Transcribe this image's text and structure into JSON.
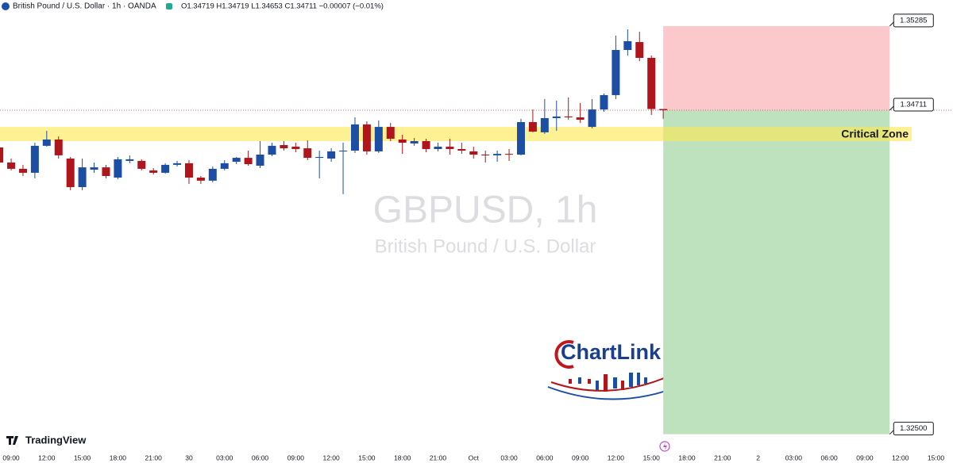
{
  "chart_data": {
    "type": "candlestick",
    "title": "British Pound / U.S. Dollar · 1h · OANDA",
    "legend_ohlc": "O1.34719 H1.34719 L1.34653 C1.34711 −0.00007 (−0.01%)",
    "watermark": [
      "GBPUSD, 1h",
      "British Pound / U.S. Dollar"
    ],
    "logo": "ChartLink",
    "brand": "TradingView",
    "up_color": "#1c4fa3",
    "down_color": "#b0151b",
    "x": [
      -1,
      0,
      1,
      2,
      3,
      4,
      5,
      6,
      7,
      8,
      9,
      10,
      11,
      12,
      13,
      14,
      15,
      16,
      17,
      18,
      19,
      20,
      21,
      22,
      23,
      24,
      25,
      26,
      27,
      28,
      29,
      30,
      31,
      32,
      33,
      34,
      35,
      36,
      37,
      38,
      39,
      40,
      41,
      42,
      43,
      44,
      45,
      46,
      47,
      48,
      49,
      50,
      51,
      52,
      53,
      54,
      55
    ],
    "open": [
      1.34457,
      1.34354,
      1.34311,
      1.34284,
      1.34468,
      1.34511,
      1.34381,
      1.34186,
      1.34305,
      1.34321,
      1.34251,
      1.34365,
      1.34365,
      1.343,
      1.34284,
      1.34338,
      1.34349,
      1.34251,
      1.3423,
      1.34311,
      1.34359,
      1.34386,
      1.34332,
      1.34408,
      1.34473,
      1.34462,
      1.34451,
      1.34386,
      1.34381,
      1.3443,
      1.34435,
      1.34614,
      1.3443,
      1.34597,
      1.34511,
      1.34484,
      1.345,
      1.34446,
      1.34462,
      1.34446,
      1.3443,
      1.34408,
      1.34403,
      1.34413,
      1.34408,
      1.3463,
      1.3456,
      1.34657,
      1.34668,
      1.34662,
      1.34597,
      1.34716,
      1.34814,
      1.35122,
      1.35176,
      1.35068,
      1.34719
    ],
    "high": [
      1.34473,
      1.34381,
      1.34338,
      1.34489,
      1.3457,
      1.34532,
      1.34392,
      1.34381,
      1.34354,
      1.34338,
      1.34392,
      1.34403,
      1.34376,
      1.34316,
      1.34349,
      1.34365,
      1.3437,
      1.34262,
      1.34327,
      1.3437,
      1.34392,
      1.34435,
      1.345,
      1.34489,
      1.345,
      1.34489,
      1.34505,
      1.34435,
      1.34451,
      1.34489,
      1.34662,
      1.34635,
      1.34641,
      1.34624,
      1.34543,
      1.34522,
      1.34516,
      1.34489,
      1.34516,
      1.34489,
      1.34462,
      1.34435,
      1.34435,
      1.34446,
      1.34652,
      1.34716,
      1.34787,
      1.34776,
      1.34798,
      1.3476,
      1.34787,
      1.34825,
      1.3522,
      1.35263,
      1.35247,
      1.35084,
      1.34719
    ],
    "low": [
      1.34327,
      1.343,
      1.34262,
      1.34246,
      1.34462,
      1.34381,
      1.34165,
      1.34165,
      1.34284,
      1.34246,
      1.3424,
      1.34349,
      1.343,
      1.34273,
      1.34278,
      1.34327,
      1.34208,
      1.34208,
      1.34219,
      1.343,
      1.34343,
      1.34332,
      1.34316,
      1.34397,
      1.34435,
      1.34424,
      1.3437,
      1.34246,
      1.34359,
      1.34138,
      1.34419,
      1.34408,
      1.34419,
      1.345,
      1.34413,
      1.34468,
      1.34424,
      1.3443,
      1.34408,
      1.34413,
      1.34381,
      1.34354,
      1.34359,
      1.34365,
      1.34403,
      1.3456,
      1.34549,
      1.3457,
      1.34646,
      1.34624,
      1.34587,
      1.347,
      1.34787,
      1.35084,
      1.35046,
      1.34679,
      1.34653
    ],
    "close": [
      1.34354,
      1.34311,
      1.34284,
      1.34468,
      1.34511,
      1.34403,
      1.34186,
      1.34321,
      1.34321,
      1.34262,
      1.34376,
      1.34376,
      1.34311,
      1.34284,
      1.34338,
      1.34349,
      1.34251,
      1.3423,
      1.34311,
      1.34349,
      1.34386,
      1.34343,
      1.34408,
      1.34468,
      1.34451,
      1.34446,
      1.34386,
      1.34392,
      1.3443,
      1.34435,
      1.34614,
      1.3443,
      1.34597,
      1.34516,
      1.34489,
      1.345,
      1.34446,
      1.34462,
      1.34446,
      1.34435,
      1.34408,
      1.34403,
      1.34413,
      1.34408,
      1.3463,
      1.34565,
      1.34657,
      1.34668,
      1.34662,
      1.34646,
      1.34716,
      1.34814,
      1.35122,
      1.35182,
      1.35068,
      1.34719,
      1.34711
    ],
    "xlim": [
      -0.94,
      79.44
    ],
    "ylim": [
      1.3239,
      1.35463
    ],
    "xticks": [
      {
        "value": 0,
        "label": "09:00"
      },
      {
        "value": 3,
        "label": "12:00"
      },
      {
        "value": 6,
        "label": "15:00"
      },
      {
        "value": 9,
        "label": "18:00"
      },
      {
        "value": 12,
        "label": "21:00"
      },
      {
        "value": 15,
        "label": "30"
      },
      {
        "value": 18,
        "label": "03:00"
      },
      {
        "value": 21,
        "label": "06:00"
      },
      {
        "value": 24,
        "label": "09:00"
      },
      {
        "value": 27,
        "label": "12:00"
      },
      {
        "value": 30,
        "label": "15:00"
      },
      {
        "value": 33,
        "label": "18:00"
      },
      {
        "value": 36,
        "label": "21:00"
      },
      {
        "value": 39,
        "label": "Oct"
      },
      {
        "value": 42,
        "label": "03:00"
      },
      {
        "value": 45,
        "label": "06:00"
      },
      {
        "value": 48,
        "label": "09:00"
      },
      {
        "value": 51,
        "label": "12:00"
      },
      {
        "value": 54,
        "label": "15:00"
      },
      {
        "value": 57,
        "label": "18:00"
      },
      {
        "value": 60,
        "label": "21:00"
      },
      {
        "value": 63,
        "label": "2"
      },
      {
        "value": 66,
        "label": "03:00"
      },
      {
        "value": 69,
        "label": "06:00"
      },
      {
        "value": 72,
        "label": "09:00"
      },
      {
        "value": 75,
        "label": "12:00"
      },
      {
        "value": 78,
        "label": "15:00"
      }
    ],
    "position": {
      "entry": 1.34711,
      "stop": 1.35285,
      "target": {
        "value": 1.325,
        "label": "1.32500"
      },
      "x_start": 55,
      "x_end": 74.1,
      "stop_color": "#fbc8cb",
      "target_color": "#bde2bd"
    },
    "zone": {
      "label": "Critical Zone",
      "low": 1.345,
      "high": 1.34597,
      "color": "#fde74c"
    }
  }
}
